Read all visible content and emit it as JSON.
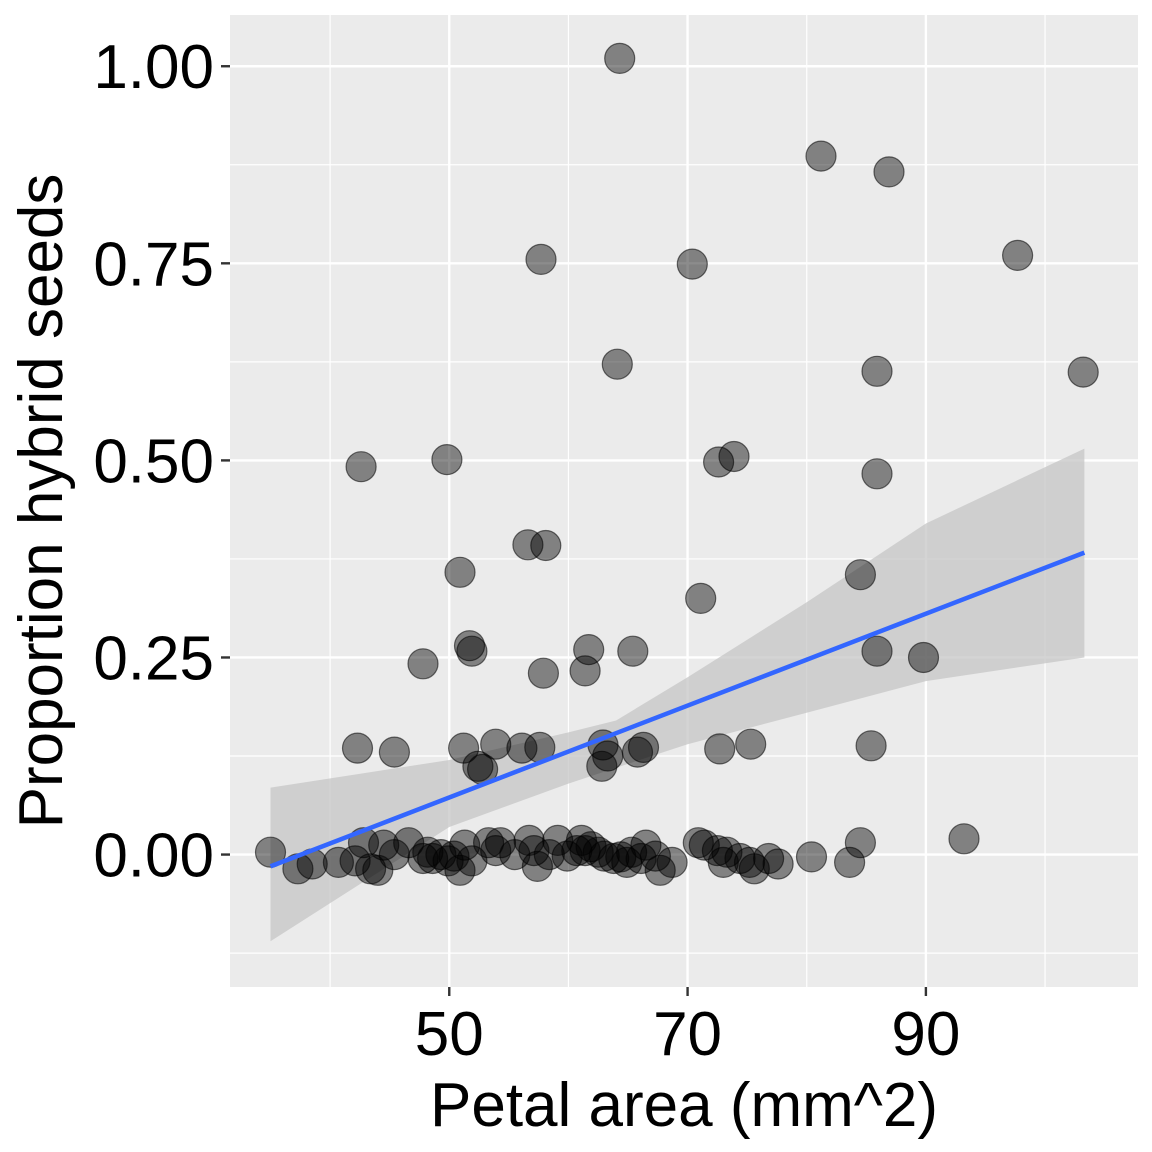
{
  "chart_data": {
    "type": "scatter",
    "title": "",
    "xlabel": "Petal area (mm^2)",
    "ylabel": "Proportion hybrid seeds",
    "xlim": [
      31.6,
      107.8
    ],
    "ylim": [
      -0.168,
      1.065
    ],
    "x_major_ticks": [
      50,
      70,
      90
    ],
    "x_minor_ticks": [
      40,
      60,
      80,
      100
    ],
    "y_major_ticks": [
      0,
      0.25,
      0.5,
      0.75,
      1.0
    ],
    "y_tick_labels": [
      "0.00",
      "0.25",
      "0.50",
      "0.75",
      "1.00"
    ],
    "grid": true,
    "colors": {
      "panel": "#EBEBEB",
      "grid": "#FFFFFF",
      "point_fill": "#000000",
      "point_opacity": 0.45,
      "trend_line": "#3366FF",
      "ribbon": "#C6C6C6"
    },
    "trend": {
      "method": "linear fit with confidence band",
      "x": [
        35.0,
        103.3
      ],
      "y": [
        -0.015,
        0.383
      ],
      "band_x": [
        35.0,
        50.0,
        60.0,
        64.0,
        70.0,
        80.0,
        90.0,
        103.3
      ],
      "band_lower": [
        -0.11,
        0.035,
        0.09,
        0.11,
        0.14,
        0.18,
        0.22,
        0.25
      ],
      "band_upper": [
        0.085,
        0.12,
        0.155,
        0.17,
        0.225,
        0.32,
        0.42,
        0.515
      ]
    },
    "points": {
      "x": [
        64.3,
        81.2,
        86.9,
        97.7,
        57.7,
        70.4,
        64.1,
        85.9,
        103.2,
        42.6,
        49.8,
        72.6,
        73.9,
        85.9,
        56.6,
        58.1,
        50.9,
        84.5,
        71.1,
        51.7,
        51.9,
        61.7,
        65.4,
        47.8,
        57.9,
        61.4,
        89.8,
        85.9,
        42.3,
        45.4,
        51.2,
        53.9,
        56.1,
        57.6,
        62.9,
        65.8,
        66.3,
        72.7,
        75.3,
        85.4,
        52.4,
        52.8,
        62.8,
        63.3,
        35.0,
        37.3,
        38.5,
        40.7,
        42.1,
        42.8,
        43.4,
        44.0,
        44.5,
        45.4,
        46.6,
        47.8,
        48.2,
        48.6,
        49.3,
        49.9,
        50.4,
        50.9,
        51.3,
        51.9,
        53.3,
        53.9,
        54.3,
        55.5,
        56.7,
        57.1,
        57.4,
        58.4,
        59.1,
        59.9,
        60.7,
        61.1,
        61.4,
        61.9,
        62.5,
        63.0,
        63.8,
        64.4,
        64.9,
        65.3,
        66.1,
        66.5,
        67.3,
        67.7,
        68.7,
        70.9,
        71.4,
        72.5,
        73.0,
        73.3,
        74.4,
        75.2,
        75.6,
        76.8,
        77.6,
        80.4,
        83.6,
        84.5,
        93.2
      ],
      "y": [
        1.01,
        0.886,
        0.866,
        0.76,
        0.755,
        0.749,
        0.622,
        0.613,
        0.612,
        0.492,
        0.501,
        0.498,
        0.505,
        0.483,
        0.393,
        0.392,
        0.358,
        0.355,
        0.325,
        0.265,
        0.258,
        0.26,
        0.258,
        0.242,
        0.23,
        0.233,
        0.25,
        0.258,
        0.135,
        0.13,
        0.135,
        0.14,
        0.135,
        0.136,
        0.139,
        0.13,
        0.136,
        0.134,
        0.14,
        0.138,
        0.112,
        0.108,
        0.112,
        0.125,
        0.003,
        -0.018,
        -0.012,
        -0.01,
        -0.008,
        0.015,
        -0.018,
        -0.02,
        0.012,
        0.0,
        0.015,
        -0.005,
        0.003,
        -0.005,
        0.0,
        -0.008,
        -0.002,
        -0.02,
        0.012,
        -0.008,
        0.015,
        0.005,
        0.015,
        0.0,
        0.018,
        0.005,
        -0.015,
        0.0,
        0.018,
        -0.002,
        0.005,
        0.018,
        0.005,
        0.01,
        0.003,
        -0.002,
        -0.005,
        -0.003,
        -0.01,
        0.003,
        -0.005,
        0.012,
        -0.002,
        -0.02,
        -0.01,
        0.015,
        0.012,
        0.005,
        -0.01,
        0.003,
        -0.005,
        -0.01,
        -0.018,
        -0.005,
        -0.012,
        -0.003,
        -0.01,
        0.015,
        0.02
      ]
    }
  }
}
